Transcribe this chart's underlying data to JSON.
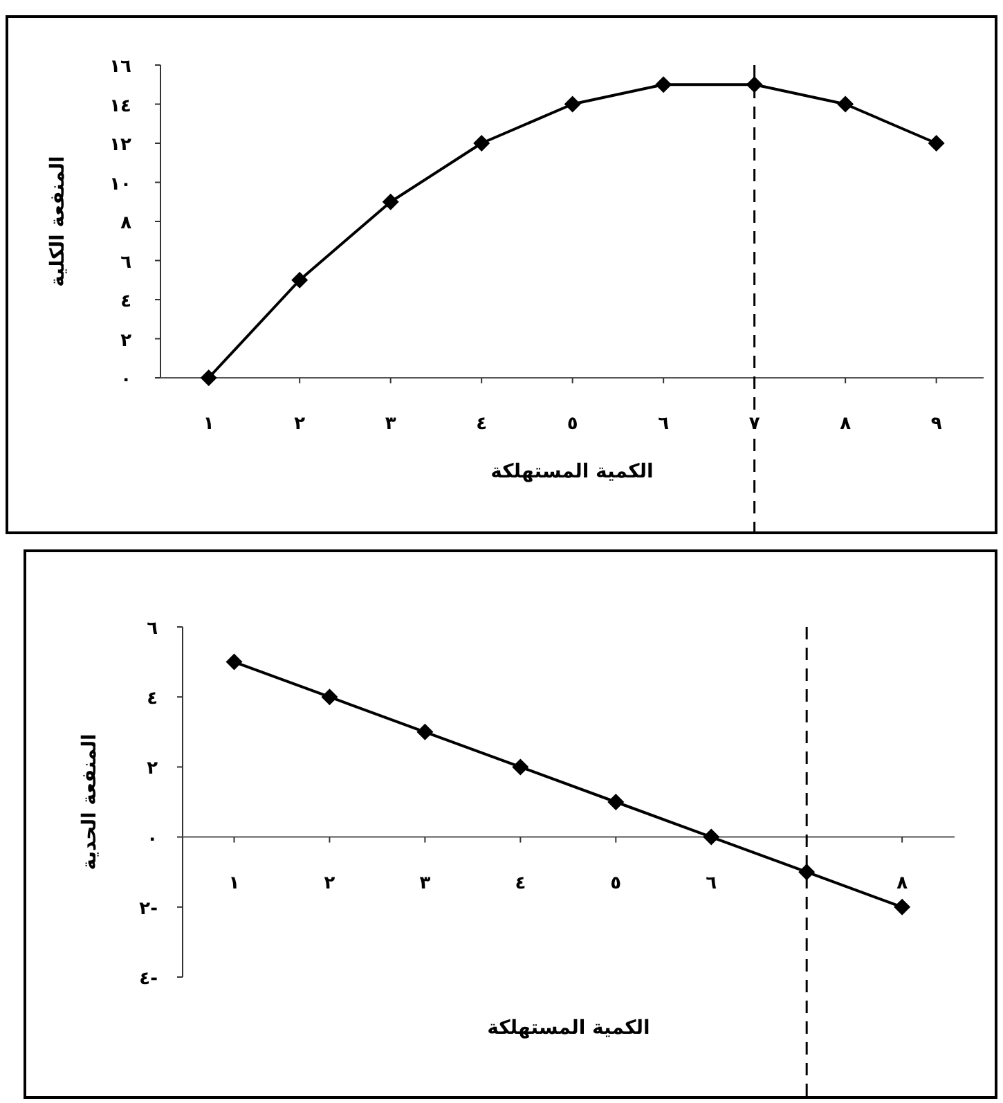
{
  "chart_data": [
    {
      "type": "line",
      "xlabel": "الكمية المستهلكة",
      "ylabel": "المنفعة الكلية",
      "x": [
        1,
        2,
        3,
        4,
        5,
        6,
        7,
        8,
        9
      ],
      "xlim": [
        0.47,
        9.52
      ],
      "xticks": [
        {
          "value": 1,
          "label": "١"
        },
        {
          "value": 2,
          "label": "٢"
        },
        {
          "value": 3,
          "label": "٣"
        },
        {
          "value": 4,
          "label": "٤"
        },
        {
          "value": 5,
          "label": "٥"
        },
        {
          "value": 6,
          "label": "٦"
        },
        {
          "value": 7,
          "label": "٧"
        },
        {
          "value": 8,
          "label": "٨"
        },
        {
          "value": 9,
          "label": "٩"
        }
      ],
      "ylim": [
        0,
        16
      ],
      "yticks": [
        {
          "value": 0,
          "label": "٠"
        },
        {
          "value": 2,
          "label": "٢"
        },
        {
          "value": 4,
          "label": "٤"
        },
        {
          "value": 6,
          "label": "٦"
        },
        {
          "value": 8,
          "label": "٨"
        },
        {
          "value": 10,
          "label": "١٠"
        },
        {
          "value": 12,
          "label": "١٢"
        },
        {
          "value": 14,
          "label": "١٤"
        },
        {
          "value": 16,
          "label": "١٦"
        }
      ],
      "series": [
        {
          "color": "#000000",
          "values": [
            0,
            5,
            9,
            12,
            14,
            15,
            15,
            14,
            12
          ]
        }
      ],
      "marker": "diamond",
      "line_style": "solid",
      "ref_lines": [
        {
          "axis": "x",
          "value": 7,
          "line_style": "dashed",
          "color": "#000000"
        }
      ]
    },
    {
      "type": "line",
      "xlabel": "الكمية المستهلكة",
      "ylabel": "المنفعة الحدية",
      "x": [
        1,
        2,
        3,
        4,
        5,
        6,
        7,
        8
      ],
      "xlim": [
        0.46,
        8.55
      ],
      "xticks": [
        {
          "value": 1,
          "label": "١"
        },
        {
          "value": 2,
          "label": "٢"
        },
        {
          "value": 3,
          "label": "٣"
        },
        {
          "value": 4,
          "label": "٤"
        },
        {
          "value": 5,
          "label": "٥"
        },
        {
          "value": 6,
          "label": "٦"
        },
        {
          "value": 7,
          "label": null
        },
        {
          "value": 8,
          "label": "٨"
        }
      ],
      "ylim": [
        -4,
        6
      ],
      "yticks": [
        {
          "value": -4,
          "label": "٤-"
        },
        {
          "value": -2,
          "label": "٢-"
        },
        {
          "value": 0,
          "label": "٠"
        },
        {
          "value": 2,
          "label": "٢"
        },
        {
          "value": 4,
          "label": "٤"
        },
        {
          "value": 6,
          "label": "٦"
        }
      ],
      "series": [
        {
          "color": "#000000",
          "values": [
            5,
            4,
            3,
            2,
            1,
            0,
            -1,
            -2
          ]
        }
      ],
      "marker": "diamond",
      "line_style": "solid",
      "ref_lines": [
        {
          "axis": "x",
          "value": 7,
          "line_style": "dashed",
          "color": "#000000"
        }
      ]
    }
  ]
}
